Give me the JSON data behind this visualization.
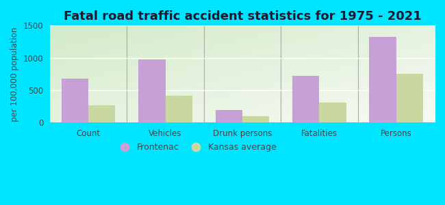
{
  "title": "Fatal road traffic accident statistics for 1975 - 2021",
  "categories": [
    "Count",
    "Vehicles",
    "Drunk persons",
    "Fatalities",
    "Persons"
  ],
  "frontenac": [
    680,
    975,
    200,
    720,
    1320
  ],
  "kansas_avg": [
    270,
    420,
    100,
    310,
    750
  ],
  "frontenac_color": "#c8a0d8",
  "kansas_color": "#c8d8a0",
  "ylabel": "per 100,000 population",
  "ylim": [
    0,
    1500
  ],
  "yticks": [
    0,
    500,
    1000,
    1500
  ],
  "bar_width": 0.35,
  "outer_bg": "#00e5ff",
  "title_fontsize": 13,
  "axis_fontsize": 8.5,
  "legend_fontsize": 9
}
